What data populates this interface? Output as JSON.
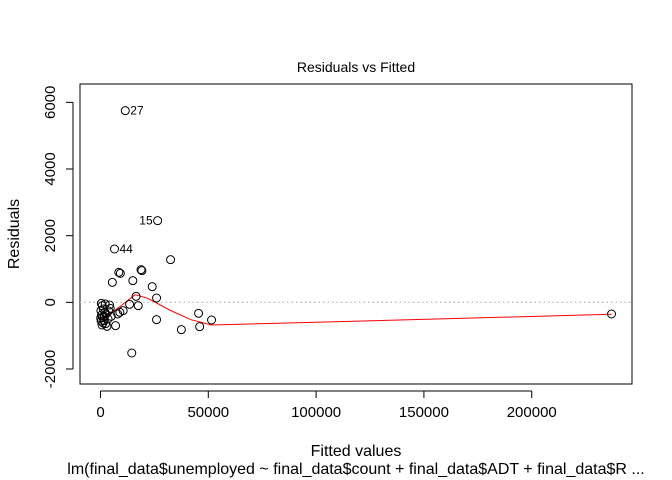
{
  "chart_data": {
    "type": "scatter",
    "title": "Residuals vs Fitted",
    "xlabel": "Fitted values",
    "sublabel": "lm(final_data$unemployed ~ final_data$count + final_data$ADT + final_data$R ...",
    "ylabel": "Residuals",
    "xlim": [
      -9500,
      246500
    ],
    "ylim": [
      -2450,
      6550
    ],
    "xticks": [
      0,
      50000,
      100000,
      150000,
      200000
    ],
    "xtick_labels": [
      "0",
      "50000",
      "100000",
      "150000",
      "200000"
    ],
    "yticks": [
      -2000,
      0,
      2000,
      4000,
      6000
    ],
    "ytick_labels": [
      "-2000",
      "0",
      "2000",
      "4000",
      "6000"
    ],
    "reference_line_y": 0,
    "points": [
      {
        "x": 11500,
        "y": 5750,
        "label": "27"
      },
      {
        "x": 26500,
        "y": 2450,
        "label": "15"
      },
      {
        "x": 6500,
        "y": 1600,
        "label": "44"
      },
      {
        "x": 32500,
        "y": 1280
      },
      {
        "x": 18800,
        "y": 980
      },
      {
        "x": 19200,
        "y": 950
      },
      {
        "x": 8500,
        "y": 900
      },
      {
        "x": 9200,
        "y": 870
      },
      {
        "x": 15000,
        "y": 650
      },
      {
        "x": 5500,
        "y": 600
      },
      {
        "x": 24000,
        "y": 470
      },
      {
        "x": 16500,
        "y": 180
      },
      {
        "x": 26000,
        "y": 130
      },
      {
        "x": 17500,
        "y": -100
      },
      {
        "x": 13500,
        "y": -60
      },
      {
        "x": 10500,
        "y": -250
      },
      {
        "x": 9000,
        "y": -300
      },
      {
        "x": 8000,
        "y": -350
      },
      {
        "x": 26000,
        "y": -520
      },
      {
        "x": 45500,
        "y": -330
      },
      {
        "x": 51500,
        "y": -530
      },
      {
        "x": 46000,
        "y": -730
      },
      {
        "x": 37500,
        "y": -820
      },
      {
        "x": 14500,
        "y": -1520
      },
      {
        "x": 237000,
        "y": -350
      },
      {
        "x": 7000,
        "y": -700
      },
      {
        "x": 5000,
        "y": -420
      },
      {
        "x": 4200,
        "y": -80
      },
      {
        "x": 3500,
        "y": -500
      },
      {
        "x": 3000,
        "y": -720
      },
      {
        "x": 2400,
        "y": -640
      },
      {
        "x": 2000,
        "y": -300
      },
      {
        "x": 1600,
        "y": -550
      },
      {
        "x": 1300,
        "y": -200
      },
      {
        "x": 1000,
        "y": -450
      },
      {
        "x": 800,
        "y": -100
      },
      {
        "x": 700,
        "y": -680
      },
      {
        "x": 500,
        "y": -380
      },
      {
        "x": 400,
        "y": -30
      },
      {
        "x": 300,
        "y": -560
      },
      {
        "x": 200,
        "y": -250
      },
      {
        "x": 100,
        "y": -470
      },
      {
        "x": 1800,
        "y": -420
      },
      {
        "x": 2600,
        "y": -350
      },
      {
        "x": 3800,
        "y": -260
      },
      {
        "x": 4500,
        "y": -180
      },
      {
        "x": 2200,
        "y": -50
      },
      {
        "x": 1200,
        "y": -620
      }
    ],
    "smoother": [
      {
        "x": 0,
        "y": -520
      },
      {
        "x": 5000,
        "y": -320
      },
      {
        "x": 10000,
        "y": -80
      },
      {
        "x": 16000,
        "y": 230
      },
      {
        "x": 22000,
        "y": 120
      },
      {
        "x": 32000,
        "y": -230
      },
      {
        "x": 42000,
        "y": -520
      },
      {
        "x": 51500,
        "y": -680
      },
      {
        "x": 237000,
        "y": -360
      }
    ],
    "colors": {
      "points": "#000000",
      "smoother": "#ff0000",
      "reference": "#bebebe"
    }
  }
}
